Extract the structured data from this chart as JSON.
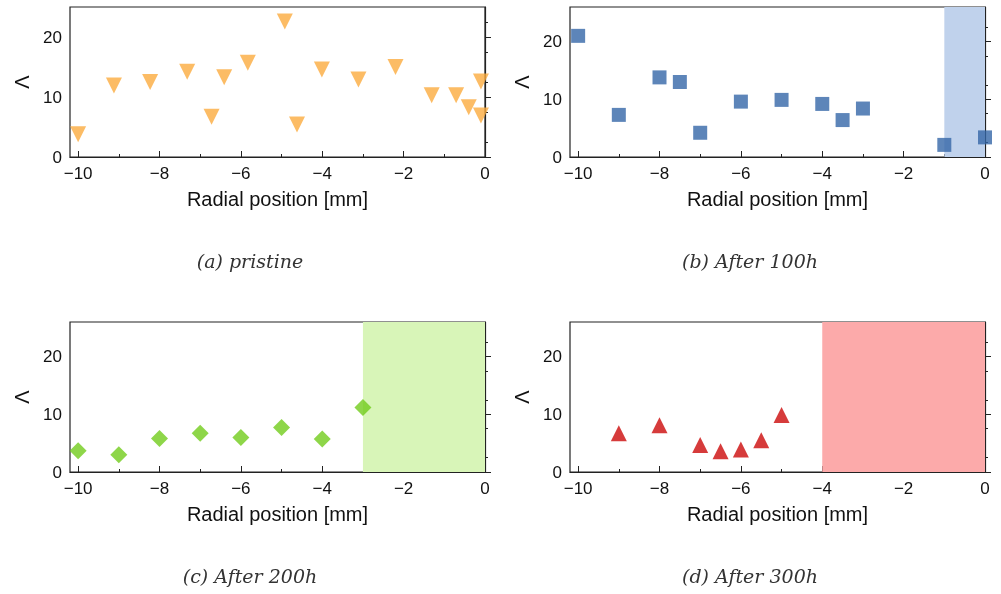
{
  "chart_data": [
    {
      "type": "scatter",
      "title": "(a) pristine",
      "xlabel": "Radial position [mm]",
      "ylabel": "Λ",
      "marker": "triangle-down",
      "xlim": [
        -10.2,
        0
      ],
      "xticks": [
        -10,
        -8,
        -6,
        -4,
        -2,
        0
      ],
      "ylim": [
        0,
        25
      ],
      "yticks": [
        0,
        10,
        20
      ],
      "series": [
        {
          "color": "#fbab3f",
          "x": [
            -10,
            -9.12,
            -8.23,
            -7.32,
            -6.72,
            -6.41,
            -5.83,
            -4.92,
            -4.62,
            -4.01,
            -3.11,
            -2.2,
            -1.31,
            -0.71,
            -0.4,
            -0.1,
            -0.1
          ],
          "values": [
            3.8,
            11.9,
            12.5,
            14.2,
            6.7,
            13.3,
            15.7,
            22.6,
            5.4,
            14.6,
            12.9,
            15.0,
            10.3,
            10.3,
            8.3,
            12.6,
            6.9
          ]
        }
      ]
    },
    {
      "type": "scatter",
      "title": "(b) After 100h",
      "xlabel": "Radial position [mm]",
      "ylabel": "Λ",
      "marker": "square",
      "xlim": [
        -10.2,
        0
      ],
      "xticks": [
        -10,
        -8,
        -6,
        -4,
        -2,
        0
      ],
      "ylim": [
        0,
        26
      ],
      "yticks": [
        0,
        10,
        20
      ],
      "series": [
        {
          "color": "#3566a8",
          "x": [
            -10,
            -9,
            -8,
            -7.5,
            -7,
            -6,
            -5,
            -4,
            -3.5,
            -3,
            -1,
            0
          ],
          "values": [
            21.0,
            7.3,
            13.8,
            13.0,
            4.2,
            9.6,
            9.9,
            9.2,
            6.4,
            8.4,
            2.1,
            3.4
          ]
        }
      ],
      "bands": [
        {
          "axis": "x",
          "from": -1,
          "to": 0,
          "color": "#c0d2ec"
        }
      ]
    },
    {
      "type": "scatter",
      "title": "(c) After 200h",
      "xlabel": "Radial position [mm]",
      "ylabel": "Λ",
      "marker": "diamond",
      "xlim": [
        -10.2,
        0
      ],
      "xticks": [
        -10,
        -8,
        -6,
        -4,
        -2,
        0
      ],
      "ylim": [
        0,
        26
      ],
      "yticks": [
        0,
        10,
        20
      ],
      "series": [
        {
          "color": "#72cc1c",
          "x": [
            -10,
            -9,
            -8,
            -7,
            -6,
            -5,
            -4,
            -3
          ],
          "values": [
            3.7,
            3.0,
            5.8,
            6.7,
            6.0,
            7.7,
            5.7,
            11.2
          ]
        }
      ],
      "bands": [
        {
          "axis": "x",
          "from": -3,
          "to": 0,
          "color": "#d8f5b8"
        }
      ]
    },
    {
      "type": "scatter",
      "title": "(d) After 300h",
      "xlabel": "Radial position [mm]",
      "ylabel": "Λ",
      "marker": "triangle",
      "xlim": [
        -10.2,
        0
      ],
      "xticks": [
        -10,
        -8,
        -6,
        -4,
        -2,
        0
      ],
      "ylim": [
        0,
        26
      ],
      "yticks": [
        0,
        10,
        20
      ],
      "series": [
        {
          "color": "#cc0a0a",
          "x": [
            -9,
            -8,
            -7,
            -6.5,
            -6,
            -5.5,
            -5
          ],
          "values": [
            6.7,
            8.1,
            4.7,
            3.6,
            3.9,
            5.5,
            9.9
          ]
        }
      ],
      "bands": [
        {
          "axis": "x",
          "from": -4,
          "to": 0,
          "color": "#fcaaaa"
        }
      ]
    }
  ]
}
